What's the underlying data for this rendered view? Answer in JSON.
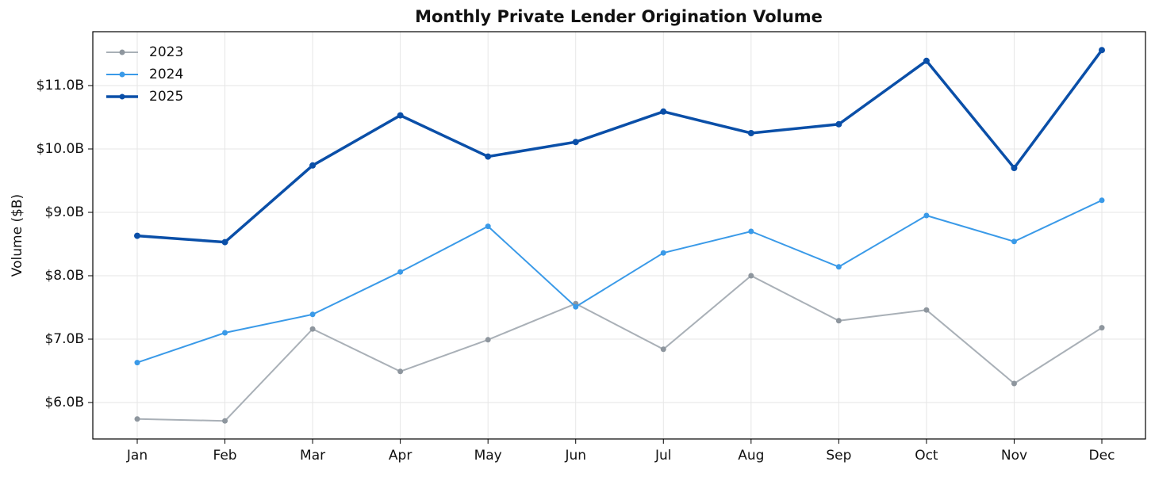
{
  "chart_data": {
    "type": "line",
    "title": "Monthly Private Lender Origination Volume",
    "y_label": "Volume ($B)",
    "categories": [
      "Jan",
      "Feb",
      "Mar",
      "Apr",
      "May",
      "Jun",
      "Jul",
      "Aug",
      "Sep",
      "Oct",
      "Nov",
      "Dec"
    ],
    "series": [
      {
        "name": "2023",
        "color": "#a9b0b7",
        "values": [
          5.74,
          5.71,
          7.16,
          6.49,
          6.99,
          7.56,
          6.84,
          8.0,
          7.29,
          7.46,
          6.3,
          7.18
        ]
      },
      {
        "name": "2024",
        "color": "#3a9ae8",
        "values": [
          6.63,
          7.1,
          7.39,
          8.06,
          8.78,
          7.51,
          8.36,
          8.7,
          8.14,
          8.95,
          8.54,
          9.19
        ]
      },
      {
        "name": "2025",
        "color": "#0a4fa8",
        "values": [
          8.63,
          8.53,
          9.74,
          10.53,
          9.88,
          10.11,
          10.59,
          10.25,
          10.39,
          11.39,
          9.7,
          11.56
        ]
      }
    ],
    "ylim": [
      5.425,
      11.85
    ],
    "yticks": [
      {
        "value": 6,
        "label": "$6.0B"
      },
      {
        "value": 7,
        "label": "$7.0B"
      },
      {
        "value": 8,
        "label": "$8.0B"
      },
      {
        "value": 9,
        "label": "$9.0B"
      },
      {
        "value": 10,
        "label": "$10.0B"
      },
      {
        "value": 11,
        "label": "$11.0B"
      }
    ],
    "grid": true,
    "legend": "upper-left"
  }
}
